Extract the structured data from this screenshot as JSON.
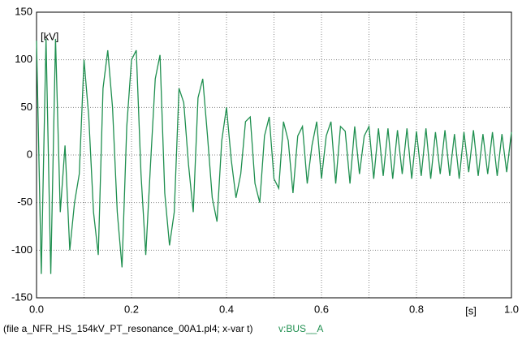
{
  "chart_data": {
    "type": "line",
    "ylabel": "[kV]",
    "xlabel": "[s]",
    "footer": "(file a_NFR_HS_154kV_PT_resonance_00A1.pl4; x-var t)",
    "xlim": [
      0,
      1
    ],
    "ylim": [
      -150,
      150
    ],
    "xticks": [
      {
        "value": 0,
        "label": "0.0"
      },
      0.2,
      0.4,
      0.6,
      0.8,
      {
        "value": 1,
        "label": "1.0"
      }
    ],
    "xminorticks": [
      0.1,
      0.3,
      0.5,
      0.7,
      0.9
    ],
    "yticks": [
      150,
      100,
      50,
      0,
      -50,
      -100,
      -150
    ],
    "grid": true,
    "x": [
      0,
      0.01,
      0.02,
      0.03,
      0.04,
      0.05,
      0.06,
      0.07,
      0.08,
      0.09,
      0.1,
      0.11,
      0.12,
      0.13,
      0.14,
      0.15,
      0.16,
      0.17,
      0.18,
      0.19,
      0.2,
      0.21,
      0.22,
      0.23,
      0.24,
      0.25,
      0.26,
      0.27,
      0.28,
      0.29,
      0.3,
      0.31,
      0.32,
      0.33,
      0.34,
      0.35,
      0.36,
      0.37,
      0.38,
      0.39,
      0.4,
      0.41,
      0.42,
      0.43,
      0.44,
      0.45,
      0.46,
      0.47,
      0.48,
      0.49,
      0.5,
      0.51,
      0.52,
      0.53,
      0.54,
      0.55,
      0.56,
      0.57,
      0.58,
      0.59,
      0.6,
      0.61,
      0.62,
      0.63,
      0.64,
      0.65,
      0.66,
      0.67,
      0.68,
      0.69,
      0.7,
      0.71,
      0.72,
      0.73,
      0.74,
      0.75,
      0.76,
      0.77,
      0.78,
      0.79,
      0.8,
      0.81,
      0.82,
      0.83,
      0.84,
      0.85,
      0.86,
      0.87,
      0.88,
      0.89,
      0.9,
      0.91,
      0.92,
      0.93,
      0.94,
      0.95,
      0.96,
      0.97,
      0.98,
      0.99,
      1
    ],
    "series": [
      {
        "name": "v:BUS__A",
        "color": "#1f8f4f",
        "values": [
          120,
          -125,
          122,
          -125,
          122,
          -60,
          10,
          -100,
          -50,
          -20,
          100,
          40,
          -60,
          -105,
          70,
          110,
          50,
          -60,
          -118,
          30,
          100,
          110,
          -20,
          -105,
          -10,
          80,
          105,
          -40,
          -95,
          -60,
          70,
          55,
          -10,
          -60,
          60,
          80,
          20,
          -45,
          -70,
          15,
          50,
          -5,
          -45,
          -20,
          35,
          40,
          -30,
          -50,
          20,
          40,
          -25,
          -35,
          35,
          15,
          -40,
          20,
          30,
          -30,
          10,
          35,
          -25,
          20,
          35,
          -30,
          30,
          25,
          -30,
          30,
          -20,
          20,
          30,
          -25,
          28,
          -22,
          28,
          -25,
          26,
          -20,
          28,
          -25,
          25,
          -22,
          28,
          -25,
          24,
          -20,
          26,
          -22,
          22,
          -25,
          24,
          -18,
          26,
          -22,
          22,
          -20,
          24,
          -22,
          22,
          -18,
          24
        ]
      }
    ]
  }
}
